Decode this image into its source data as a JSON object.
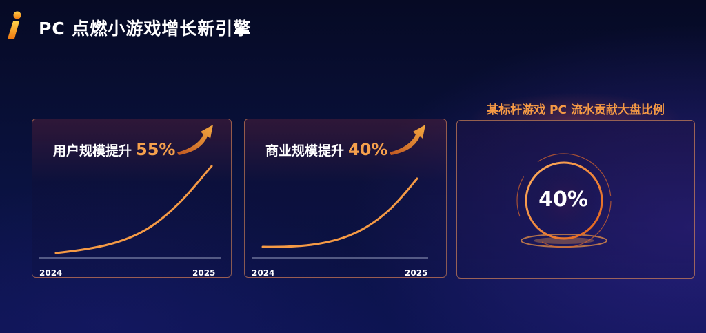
{
  "header": {
    "title": "PC 点燃小游戏增长新引擎"
  },
  "cards": [
    {
      "label": "用户规模提升",
      "value": "55%",
      "x_start": "2024",
      "x_end": "2025"
    },
    {
      "label": "商业规模提升",
      "value": "40%",
      "x_start": "2024",
      "x_end": "2025"
    }
  ],
  "highlight": {
    "title": "某标杆游戏 PC 流水贡献大盘比例",
    "value": "40%"
  },
  "colors": {
    "accent": "#f5a04c",
    "background": "#0a1240",
    "border": "#f0965a"
  },
  "icons": {
    "logo": "info-i-icon",
    "trend": "trend-up-arrow-icon"
  }
}
